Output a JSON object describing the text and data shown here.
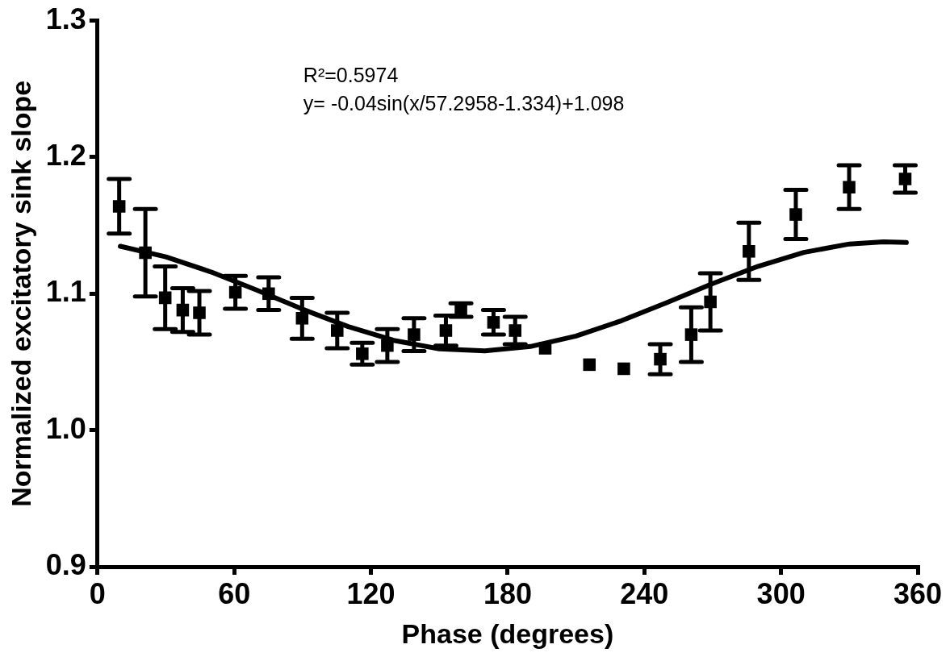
{
  "chart_data": {
    "type": "scatter",
    "xlabel": "Phase (degrees)",
    "ylabel": "Normalized excitatory sink slope",
    "xlim": [
      0,
      360
    ],
    "xticks": [
      0,
      60,
      120,
      180,
      240,
      300,
      360
    ],
    "ylim": [
      0.9,
      1.3
    ],
    "yticks": [
      {
        "value": 0.9,
        "label": "0.9"
      },
      {
        "value": 1,
        "label": "1.0"
      },
      {
        "value": 1.1,
        "label": "1.1"
      },
      {
        "value": 1.2,
        "label": "1.2"
      },
      {
        "value": 1.3,
        "label": "1.3"
      }
    ],
    "marker": "square",
    "legend": false,
    "grid": false,
    "annotations": [
      "R²=0.5974",
      "y= -0.04sin(x/57.2958-1.334)+1.098"
    ],
    "series": [
      {
        "type": "scatter",
        "color": "#000000",
        "x": [
          9.5,
          21,
          29.7,
          37.4,
          44.7,
          60.5,
          75.1,
          89.8,
          105.2,
          116.2,
          127.2,
          138.9,
          152.9,
          159.5,
          173.8,
          183.3,
          196.5,
          215.9,
          231,
          247,
          260.6,
          269,
          285.9,
          306.5,
          329.9,
          354.5
        ],
        "values": [
          1.164,
          1.13,
          1.097,
          1.088,
          1.086,
          1.101,
          1.1,
          1.082,
          1.073,
          1.056,
          1.062,
          1.07,
          1.073,
          1.088,
          1.079,
          1.073,
          1.06,
          1.048,
          1.045,
          1.052,
          1.07,
          1.094,
          1.131,
          1.158,
          1.178,
          1.184
        ],
        "errors": [
          0.02,
          0.032,
          0.023,
          0.016,
          0.016,
          0.012,
          0.012,
          0.015,
          0.013,
          0.008,
          0.012,
          0.012,
          0.011,
          0.005,
          0.009,
          0.01,
          null,
          null,
          null,
          0.011,
          0.02,
          0.021,
          0.021,
          0.018,
          0.016,
          0.01
        ]
      },
      {
        "type": "line",
        "color": "#000000",
        "marker": "none",
        "line_style": "solid",
        "x": [
          10,
          30,
          50,
          70,
          90,
          110,
          130,
          150,
          170,
          190,
          210,
          230,
          250,
          270,
          290,
          310,
          330,
          345,
          355
        ],
        "values": [
          1.1347,
          1.127,
          1.1158,
          1.1025,
          1.0886,
          1.0759,
          1.0658,
          1.0596,
          1.0581,
          1.0613,
          1.069,
          1.0802,
          1.0935,
          1.1074,
          1.1201,
          1.1302,
          1.1364,
          1.138,
          1.1375
        ]
      }
    ]
  }
}
